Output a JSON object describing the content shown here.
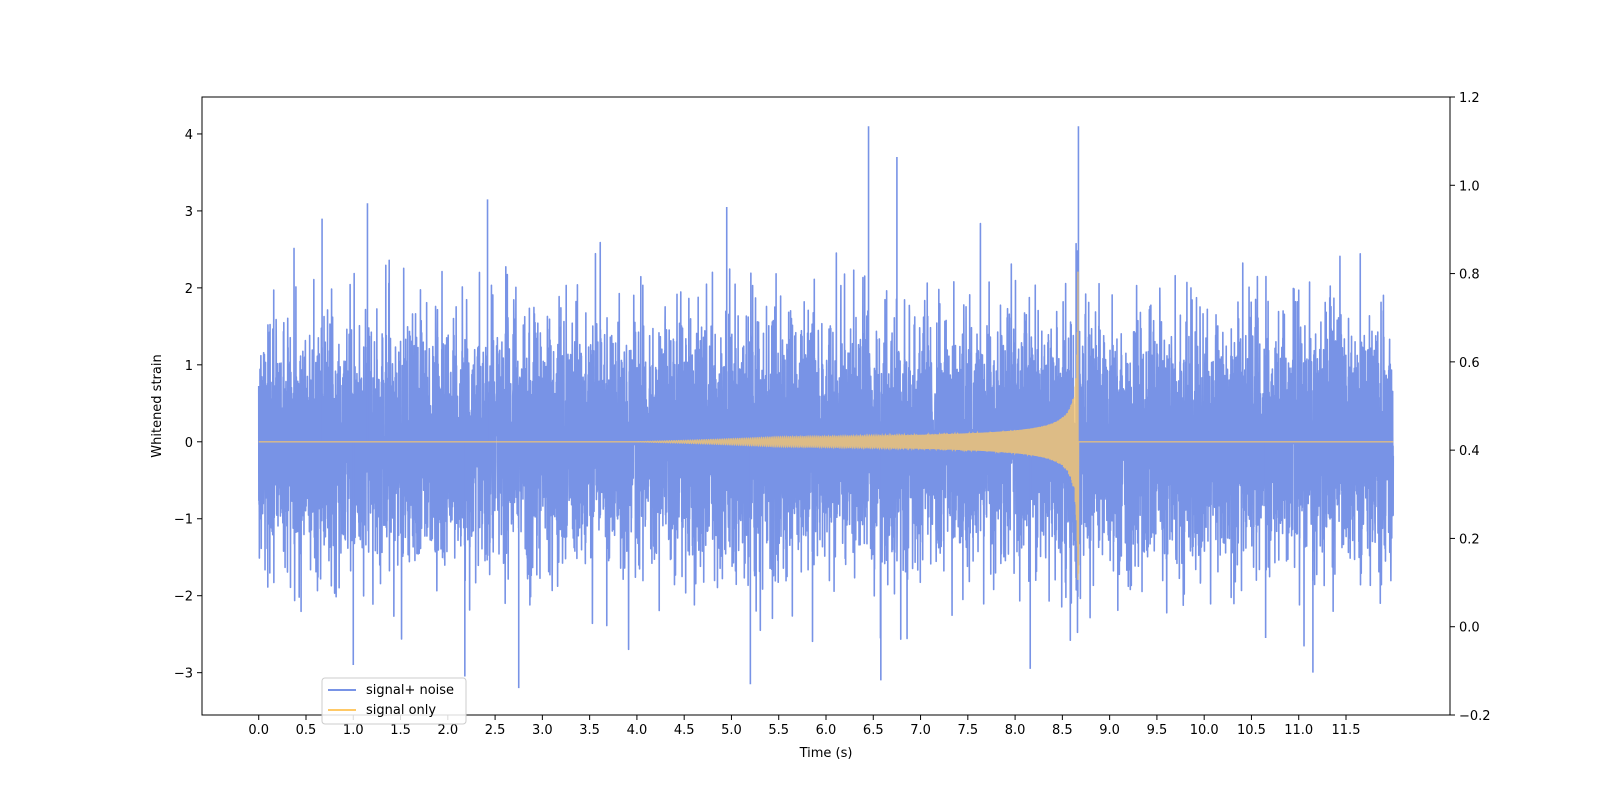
{
  "chart_data": {
    "type": "line",
    "title": "",
    "xlabel": "Time (s)",
    "ylabel": "Whitened strain",
    "xlim": [
      -0.6,
      12.6
    ],
    "ylim": [
      -3.55,
      4.48
    ],
    "y2lim": [
      -0.2,
      1.2
    ],
    "xticks": [
      0.0,
      0.5,
      1.0,
      1.5,
      2.0,
      2.5,
      3.0,
      3.5,
      4.0,
      4.5,
      5.0,
      5.5,
      6.0,
      6.5,
      7.0,
      7.5,
      8.0,
      8.5,
      9.0,
      9.5,
      10.0,
      10.5,
      11.0,
      11.5
    ],
    "xtick_labels": [
      "0.0",
      "0.5",
      "1.0",
      "1.5",
      "2.0",
      "2.5",
      "3.0",
      "3.5",
      "4.0",
      "4.5",
      "5.0",
      "5.5",
      "6.0",
      "6.5",
      "7.0",
      "7.5",
      "8.0",
      "8.5",
      "9.0",
      "9.5",
      "10.0",
      "10.5",
      "11.0",
      "11.5"
    ],
    "yticks": [
      -3,
      -2,
      -1,
      0,
      1,
      2,
      3,
      4
    ],
    "ytick_labels": [
      "−3",
      "−2",
      "−1",
      "0",
      "1",
      "2",
      "3",
      "4"
    ],
    "y2ticks": [
      -0.2,
      0.0,
      0.2,
      0.4,
      0.6,
      0.8,
      1.0,
      1.2
    ],
    "y2tick_labels": [
      "−0.2",
      "0.0",
      "0.2",
      "0.4",
      "0.6",
      "0.8",
      "1.0",
      "1.2"
    ],
    "grid": false,
    "legend_position": "lower-left",
    "series": [
      {
        "name": "signal+ noise",
        "color": "#7893e6",
        "t_range": [
          0.0,
          12.0
        ],
        "typical_band": [
          -1.3,
          1.3
        ],
        "max": 4.1,
        "min": -3.2,
        "spikes": [
          {
            "t": 0.67,
            "y": 2.9
          },
          {
            "t": 1.15,
            "y": 3.1
          },
          {
            "t": 1.0,
            "y": -2.9
          },
          {
            "t": 2.42,
            "y": 3.15
          },
          {
            "t": 2.18,
            "y": -3.05
          },
          {
            "t": 2.75,
            "y": -3.2
          },
          {
            "t": 4.95,
            "y": 3.05
          },
          {
            "t": 5.2,
            "y": -3.15
          },
          {
            "t": 6.45,
            "y": 4.1
          },
          {
            "t": 6.75,
            "y": 3.7
          },
          {
            "t": 6.58,
            "y": -3.1
          },
          {
            "t": 8.67,
            "y": 4.1
          },
          {
            "t": 8.16,
            "y": -2.95
          },
          {
            "t": 10.65,
            "y": -2.55
          },
          {
            "t": 11.15,
            "y": -3.0
          }
        ]
      },
      {
        "name": "signal only",
        "color": "#ffc966",
        "axis": "right",
        "baseline": 0.0,
        "onset_t": 4.0,
        "merger_t": 8.67,
        "peak_amplitude": 2.5,
        "post_merger": 0.0
      }
    ]
  }
}
